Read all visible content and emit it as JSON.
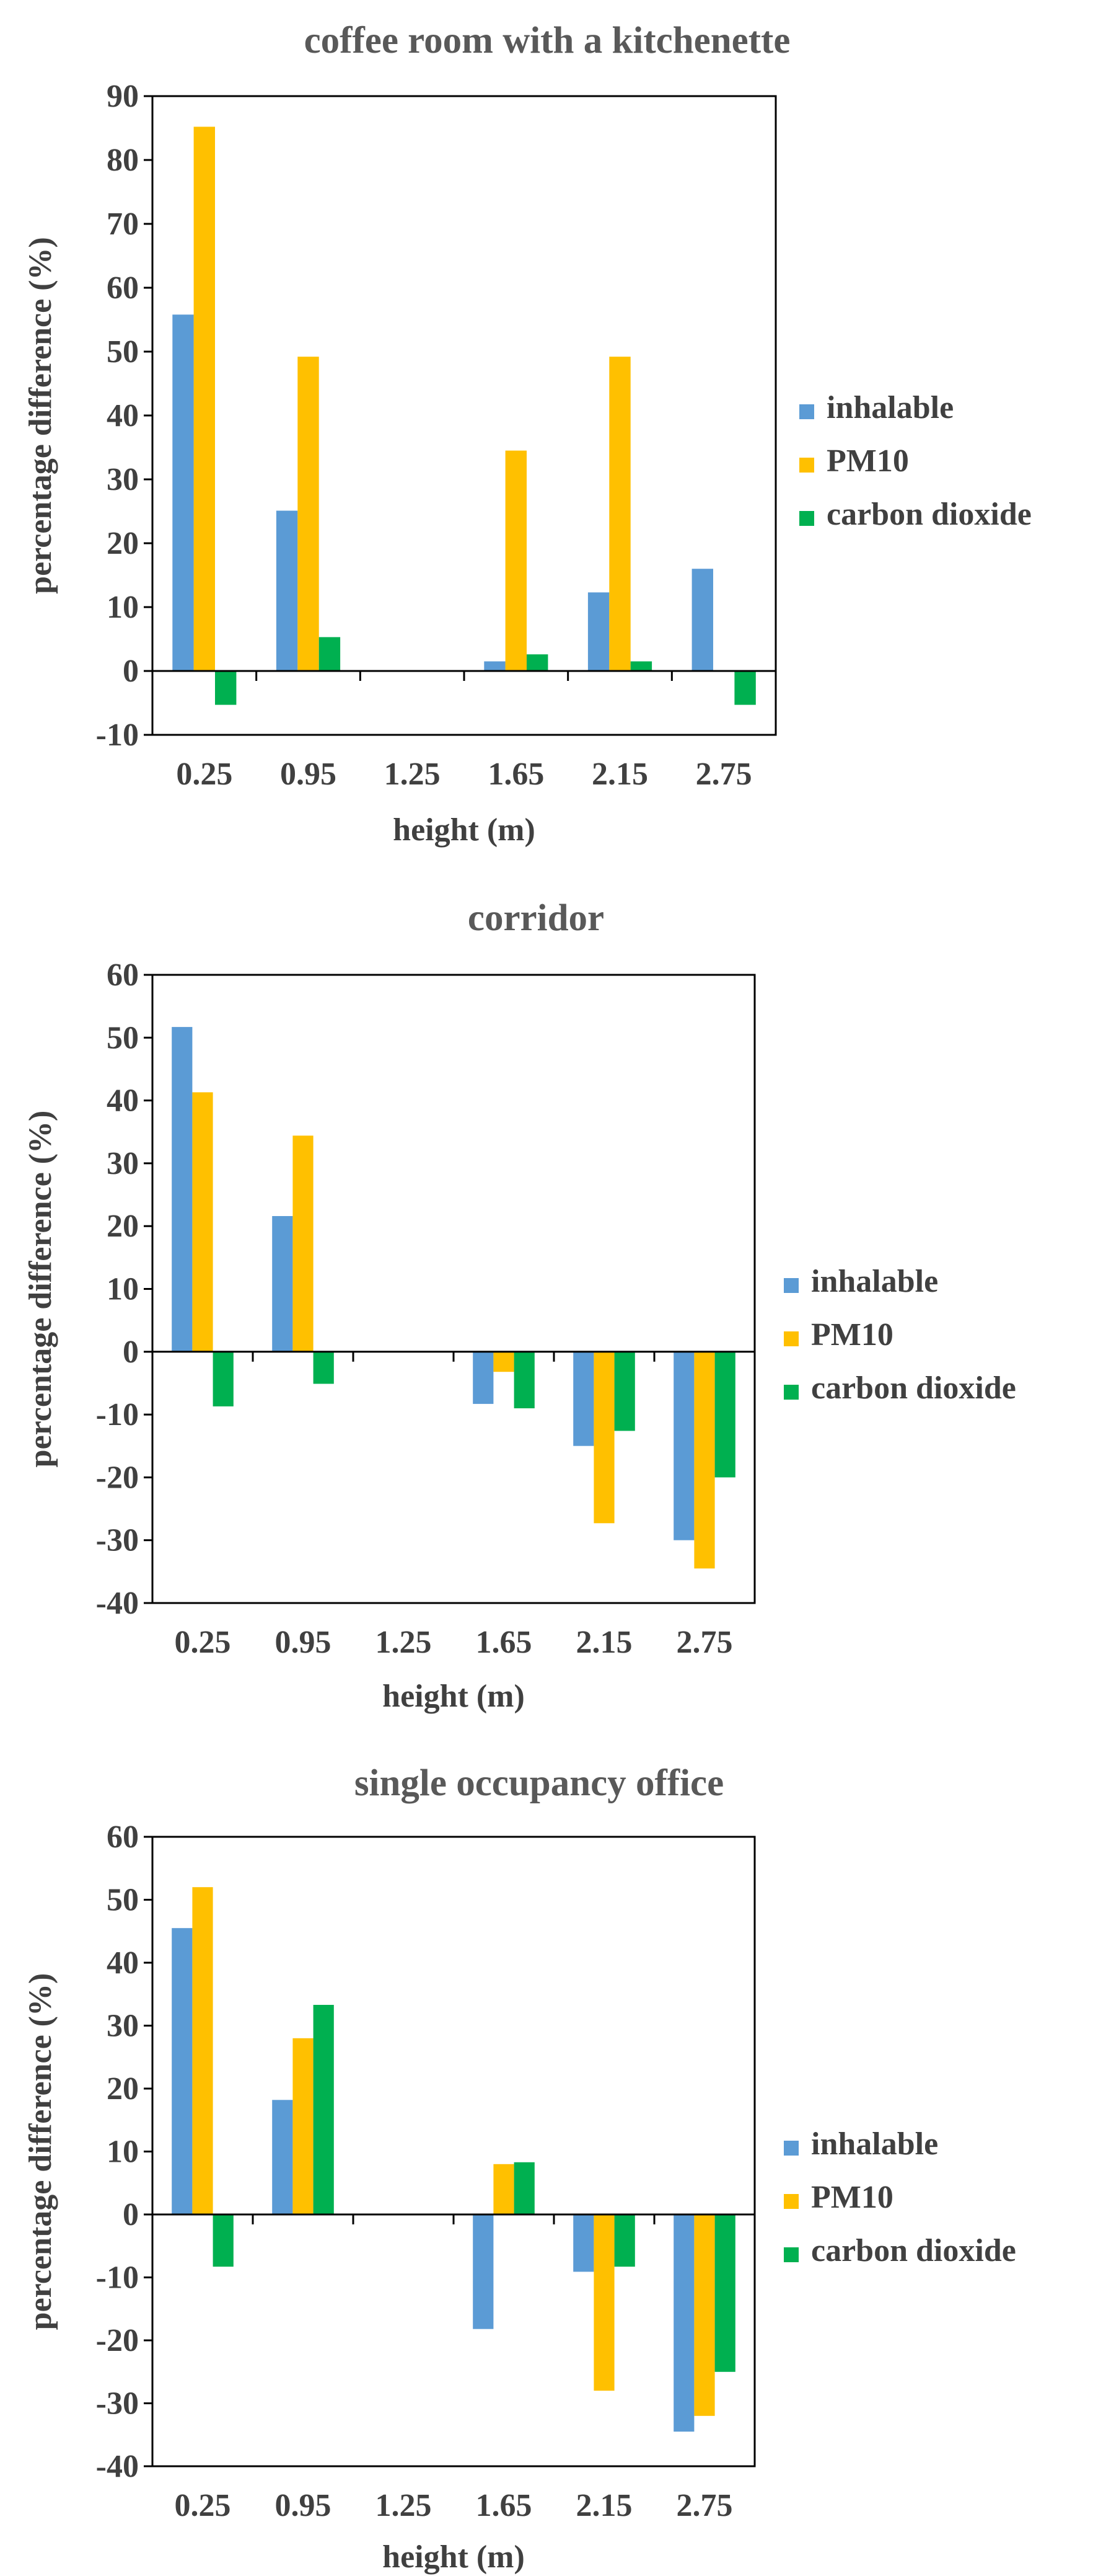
{
  "colors": {
    "inhalable": "#5b9bd5",
    "PM10": "#ffc000",
    "carbon dioxide": "#00b050"
  },
  "chart_data": [
    {
      "type": "bar",
      "title": "coffee room with a kitchenette",
      "xlabel": "height (m)",
      "ylabel": "percentage difference (%)",
      "ylim": [
        -10,
        90
      ],
      "yticks": [
        -10,
        0,
        10,
        20,
        30,
        40,
        50,
        60,
        70,
        80,
        90
      ],
      "categories": [
        "0.25",
        "0.95",
        "1.25",
        "1.65",
        "2.15",
        "2.75"
      ],
      "legend_position": "right",
      "series": [
        {
          "name": "inhalable",
          "values": [
            55.8,
            25.1,
            0,
            1.5,
            12.3,
            16.0
          ]
        },
        {
          "name": "PM10",
          "values": [
            85.2,
            49.2,
            0,
            34.5,
            49.2,
            0
          ]
        },
        {
          "name": "carbon dioxide",
          "values": [
            -5.3,
            5.3,
            0,
            2.6,
            1.5,
            -5.3
          ]
        }
      ]
    },
    {
      "type": "bar",
      "title": "corridor",
      "xlabel": "height (m)",
      "ylabel": "percentage difference (%)",
      "ylim": [
        -40,
        60
      ],
      "yticks": [
        -40,
        -30,
        -20,
        -10,
        0,
        10,
        20,
        30,
        40,
        50,
        60
      ],
      "categories": [
        "0.25",
        "0.95",
        "1.25",
        "1.65",
        "2.15",
        "2.75"
      ],
      "legend_position": "right",
      "series": [
        {
          "name": "inhalable",
          "values": [
            51.7,
            21.6,
            0,
            -8.3,
            -15.0,
            -30.0
          ]
        },
        {
          "name": "PM10",
          "values": [
            41.3,
            34.4,
            0,
            -3.2,
            -27.3,
            -34.5
          ]
        },
        {
          "name": "carbon dioxide",
          "values": [
            -8.7,
            -5.1,
            0,
            -9.0,
            -12.6,
            -20.0
          ]
        }
      ]
    },
    {
      "type": "bar",
      "title": "single occupancy office",
      "xlabel": "height (m)",
      "ylabel": "percentage difference (%)",
      "ylim": [
        -40,
        60
      ],
      "yticks": [
        -40,
        -30,
        -20,
        -10,
        0,
        10,
        20,
        30,
        40,
        50,
        60
      ],
      "categories": [
        "0.25",
        "0.95",
        "1.25",
        "1.65",
        "2.15",
        "2.75"
      ],
      "legend_position": "right",
      "series": [
        {
          "name": "inhalable",
          "values": [
            45.5,
            18.2,
            0,
            -18.2,
            -9.1,
            -34.5
          ]
        },
        {
          "name": "PM10",
          "values": [
            52.0,
            28.0,
            0,
            8.0,
            -28.0,
            -32.0
          ]
        },
        {
          "name": "carbon dioxide",
          "values": [
            -8.3,
            33.3,
            0,
            8.3,
            -8.3,
            -25.0
          ]
        }
      ]
    }
  ]
}
